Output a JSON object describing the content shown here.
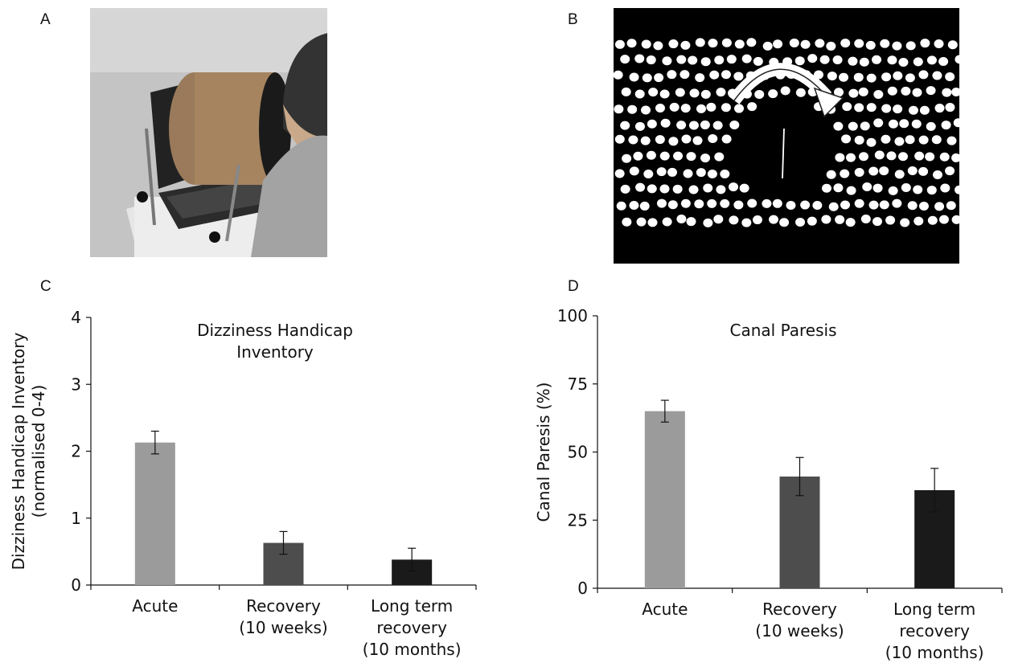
{
  "panels": {
    "a": {
      "label": "A"
    },
    "b": {
      "label": "B"
    },
    "c": {
      "label": "C"
    },
    "d": {
      "label": "D"
    }
  },
  "colors": {
    "acute": "#9b9b9b",
    "recovery": "#4d4d4d",
    "long_term": "#1a1a1a"
  },
  "chart_data": [
    {
      "type": "bar",
      "title": "Dizziness Handicap Inventory",
      "title_lines": [
        "Dizziness Handicap",
        "Inventory"
      ],
      "ylabel": "Dizziness Handicap Inventory",
      "ylabel2": "(normalised 0-4)",
      "xlabel": "",
      "categories": [
        "Acute",
        "Recovery (10 weeks)",
        "Long term recovery (10 months)"
      ],
      "category_lines": [
        [
          "Acute"
        ],
        [
          "Recovery",
          "(10 weeks)"
        ],
        [
          "Long term",
          "recovery",
          "(10 months)"
        ]
      ],
      "values": [
        2.13,
        0.63,
        0.38
      ],
      "errors": [
        0.17,
        0.17,
        0.17
      ],
      "ylim": [
        0,
        4
      ],
      "yticks": [
        0,
        1,
        2,
        3,
        4
      ],
      "grid": false
    },
    {
      "type": "bar",
      "title": "Canal Paresis",
      "title_lines": [
        "Canal Paresis"
      ],
      "ylabel": "Canal Paresis (%)",
      "xlabel": "",
      "categories": [
        "Acute",
        "Recovery (10 weeks)",
        "Long term recovery (10 months)"
      ],
      "category_lines": [
        [
          "Acute"
        ],
        [
          "Recovery",
          "(10 weeks)"
        ],
        [
          "Long term",
          "recovery",
          "(10 months)"
        ]
      ],
      "values": [
        65,
        41,
        36
      ],
      "errors": [
        4,
        7,
        8
      ],
      "ylim": [
        0,
        100
      ],
      "yticks": [
        0,
        25,
        50,
        75,
        100
      ],
      "grid": false
    }
  ]
}
